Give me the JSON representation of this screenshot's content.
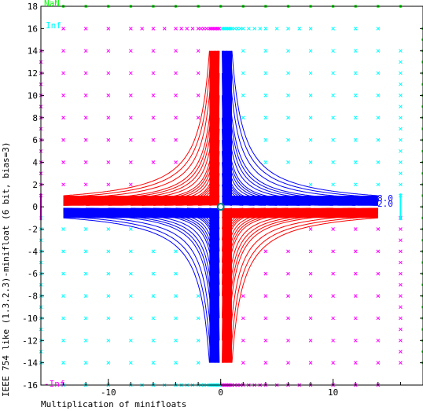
{
  "chart_data": {
    "type": "line",
    "title": "",
    "xlabel": "Multiplication of minifloats",
    "ylabel": "IEEE 754 like (1.3.2.3)-minifloat (6 bit, bias=3)",
    "xlim": [
      -16,
      18
    ],
    "ylim": [
      -16,
      18
    ],
    "x_ticks": [
      -10,
      0,
      10
    ],
    "y_ticks": [
      -16,
      -14,
      -12,
      -10,
      -8,
      -6,
      -4,
      -2,
      0,
      2,
      4,
      6,
      8,
      10,
      12,
      14,
      16,
      18
    ],
    "special_labels": {
      "nan": "NaN",
      "inf": "Inf",
      "neg_inf": "-Inf"
    },
    "curve_labels": [
      "8.0",
      "2.0"
    ],
    "grid": false,
    "minifloat_values": [
      0.125,
      0.25,
      0.375,
      0.5,
      0.625,
      0.75,
      0.875,
      1,
      1.25,
      1.5,
      1.75,
      2,
      2.5,
      3,
      3.5,
      4,
      5,
      6,
      7,
      8,
      10,
      12,
      14
    ],
    "series": [
      {
        "name": "",
        "color": "#0000ff",
        "quadrants": "positive-product",
        "kind": "hyperbola"
      },
      {
        "name": "",
        "color": "#ff0000",
        "quadrants": "negative-product",
        "kind": "hyperbola"
      },
      {
        "name": "",
        "color": "#ff00ff",
        "kind": "marker-x",
        "row_spacing": 2
      },
      {
        "name": "",
        "color": "#00ffff",
        "kind": "marker-x",
        "row_spacing": 2
      },
      {
        "name": "",
        "color": "#00ff00",
        "kind": "marker-star"
      }
    ],
    "colors": {
      "positive": "#0000ff",
      "negative": "#ff0000",
      "overflow": "#ff00ff",
      "infinity": "#00ffff",
      "nan": "#00ff00",
      "center": "#008080",
      "axis": "#000000"
    }
  }
}
